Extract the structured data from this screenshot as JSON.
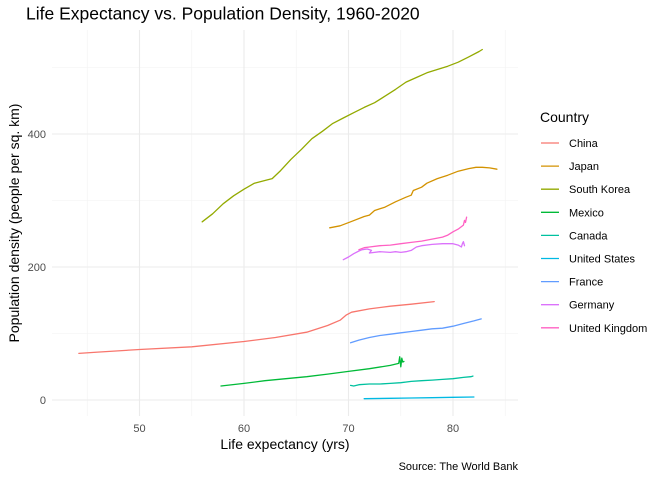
{
  "chart_data": {
    "type": "line",
    "title": "Life Expectancy vs. Population Density, 1960-2020",
    "xlabel": "Life expectancy (yrs)",
    "ylabel": "Population density (people per sq. km)",
    "caption": "Source: The World Bank",
    "legend_title": "Country",
    "legend_position": "right",
    "grid": true,
    "xlim": [
      42,
      86
    ],
    "ylim": [
      -20,
      560
    ],
    "x_ticks": [
      50,
      60,
      70,
      80
    ],
    "y_ticks": [
      0,
      200,
      400
    ],
    "series": [
      {
        "name": "China",
        "color": "#F8766D",
        "points": [
          [
            44.2,
            70
          ],
          [
            46,
            72
          ],
          [
            50,
            76
          ],
          [
            55,
            80
          ],
          [
            60,
            88
          ],
          [
            63,
            94
          ],
          [
            66,
            102
          ],
          [
            68,
            112
          ],
          [
            69.2,
            120
          ],
          [
            69.8,
            128
          ],
          [
            70.3,
            132
          ],
          [
            72,
            137
          ],
          [
            74,
            141
          ],
          [
            76,
            144
          ],
          [
            78.2,
            148
          ]
        ]
      },
      {
        "name": "Japan",
        "color": "#D39200",
        "points": [
          [
            68.2,
            259
          ],
          [
            69.2,
            262
          ],
          [
            70.2,
            268
          ],
          [
            71.5,
            276
          ],
          [
            72,
            278
          ],
          [
            72.5,
            285
          ],
          [
            73.5,
            290
          ],
          [
            74.5,
            298
          ],
          [
            75.5,
            305
          ],
          [
            76,
            308
          ],
          [
            76.2,
            315
          ],
          [
            77,
            320
          ],
          [
            77.5,
            326
          ],
          [
            78.5,
            333
          ],
          [
            79.5,
            338
          ],
          [
            80.5,
            344
          ],
          [
            81.5,
            348
          ],
          [
            82.2,
            350
          ],
          [
            82.8,
            350
          ],
          [
            83.5,
            349
          ],
          [
            84.2,
            347
          ]
        ]
      },
      {
        "name": "South Korea",
        "color": "#93AA00",
        "points": [
          [
            56,
            268
          ],
          [
            57,
            280
          ],
          [
            58,
            295
          ],
          [
            59,
            307
          ],
          [
            60,
            317
          ],
          [
            61,
            326
          ],
          [
            62,
            330
          ],
          [
            62.7,
            333
          ],
          [
            63.5,
            345
          ],
          [
            64.5,
            362
          ],
          [
            65.5,
            377
          ],
          [
            66.5,
            393
          ],
          [
            67.5,
            404
          ],
          [
            68.5,
            416
          ],
          [
            69.5,
            424
          ],
          [
            70.5,
            432
          ],
          [
            71.5,
            440
          ],
          [
            72.5,
            447
          ],
          [
            73.5,
            457
          ],
          [
            74.5,
            467
          ],
          [
            75.5,
            478
          ],
          [
            76.5,
            485
          ],
          [
            77.5,
            492
          ],
          [
            78.5,
            497
          ],
          [
            79.5,
            502
          ],
          [
            80.5,
            508
          ],
          [
            81.5,
            516
          ],
          [
            82.5,
            524
          ],
          [
            82.8,
            527
          ]
        ]
      },
      {
        "name": "Mexico",
        "color": "#00BA38",
        "points": [
          [
            57.8,
            21
          ],
          [
            60,
            25
          ],
          [
            62,
            29
          ],
          [
            64,
            32
          ],
          [
            66,
            35
          ],
          [
            68,
            39
          ],
          [
            70,
            43
          ],
          [
            72,
            47
          ],
          [
            74,
            52
          ],
          [
            74.8,
            55
          ],
          [
            74.9,
            65
          ],
          [
            75,
            50
          ],
          [
            75.1,
            63
          ],
          [
            75.2,
            57
          ],
          [
            75.3,
            58
          ]
        ]
      },
      {
        "name": "Canada",
        "color": "#00C19F",
        "points": [
          [
            70.2,
            22
          ],
          [
            70.5,
            21
          ],
          [
            71,
            23
          ],
          [
            72,
            24
          ],
          [
            73,
            24
          ],
          [
            74,
            25
          ],
          [
            75,
            26
          ],
          [
            76,
            28
          ],
          [
            77,
            29
          ],
          [
            78,
            30
          ],
          [
            79,
            31
          ],
          [
            80,
            32
          ],
          [
            81,
            34
          ],
          [
            81.7,
            35
          ],
          [
            81.9,
            36
          ]
        ]
      },
      {
        "name": "United States",
        "color": "#00B9E3",
        "points": [
          [
            71.5,
            2
          ],
          [
            74,
            2.5
          ],
          [
            76,
            3
          ],
          [
            78,
            3.5
          ],
          [
            80,
            4
          ],
          [
            82,
            4.5
          ]
        ]
      },
      {
        "name": "France",
        "color": "#619CFF",
        "points": [
          [
            70.2,
            86
          ],
          [
            71,
            90
          ],
          [
            72,
            94
          ],
          [
            73,
            97
          ],
          [
            74,
            99
          ],
          [
            75,
            101
          ],
          [
            76,
            103
          ],
          [
            77,
            105
          ],
          [
            78,
            107
          ],
          [
            79,
            108
          ],
          [
            80,
            111
          ],
          [
            81,
            115
          ],
          [
            82,
            119
          ],
          [
            82.7,
            122
          ]
        ]
      },
      {
        "name": "Germany",
        "color": "#DB72FB",
        "points": [
          [
            69.5,
            211
          ],
          [
            70,
            215
          ],
          [
            70.5,
            220
          ],
          [
            71,
            224
          ],
          [
            71.3,
            226
          ],
          [
            71.8,
            227
          ],
          [
            72.2,
            225
          ],
          [
            72,
            221
          ],
          [
            73,
            223
          ],
          [
            74,
            222
          ],
          [
            74.5,
            223
          ],
          [
            75,
            222
          ],
          [
            75.5,
            223
          ],
          [
            76,
            225
          ],
          [
            76.5,
            230
          ],
          [
            77,
            232
          ],
          [
            78,
            234
          ],
          [
            79,
            235
          ],
          [
            80,
            235
          ],
          [
            80.5,
            233
          ],
          [
            80.8,
            230
          ],
          [
            80.9,
            235
          ],
          [
            81,
            238
          ],
          [
            81.1,
            232
          ]
        ]
      },
      {
        "name": "United Kingdom",
        "color": "#FF61C3",
        "points": [
          [
            71,
            226
          ],
          [
            71.5,
            229
          ],
          [
            72,
            230
          ],
          [
            73,
            232
          ],
          [
            74,
            233
          ],
          [
            75,
            235
          ],
          [
            76,
            237
          ],
          [
            77,
            239
          ],
          [
            78,
            242
          ],
          [
            79,
            245
          ],
          [
            79.5,
            248
          ],
          [
            80,
            253
          ],
          [
            80.5,
            257
          ],
          [
            81,
            263
          ],
          [
            81.1,
            270
          ],
          [
            81.2,
            267
          ],
          [
            81.3,
            275
          ]
        ]
      }
    ]
  }
}
